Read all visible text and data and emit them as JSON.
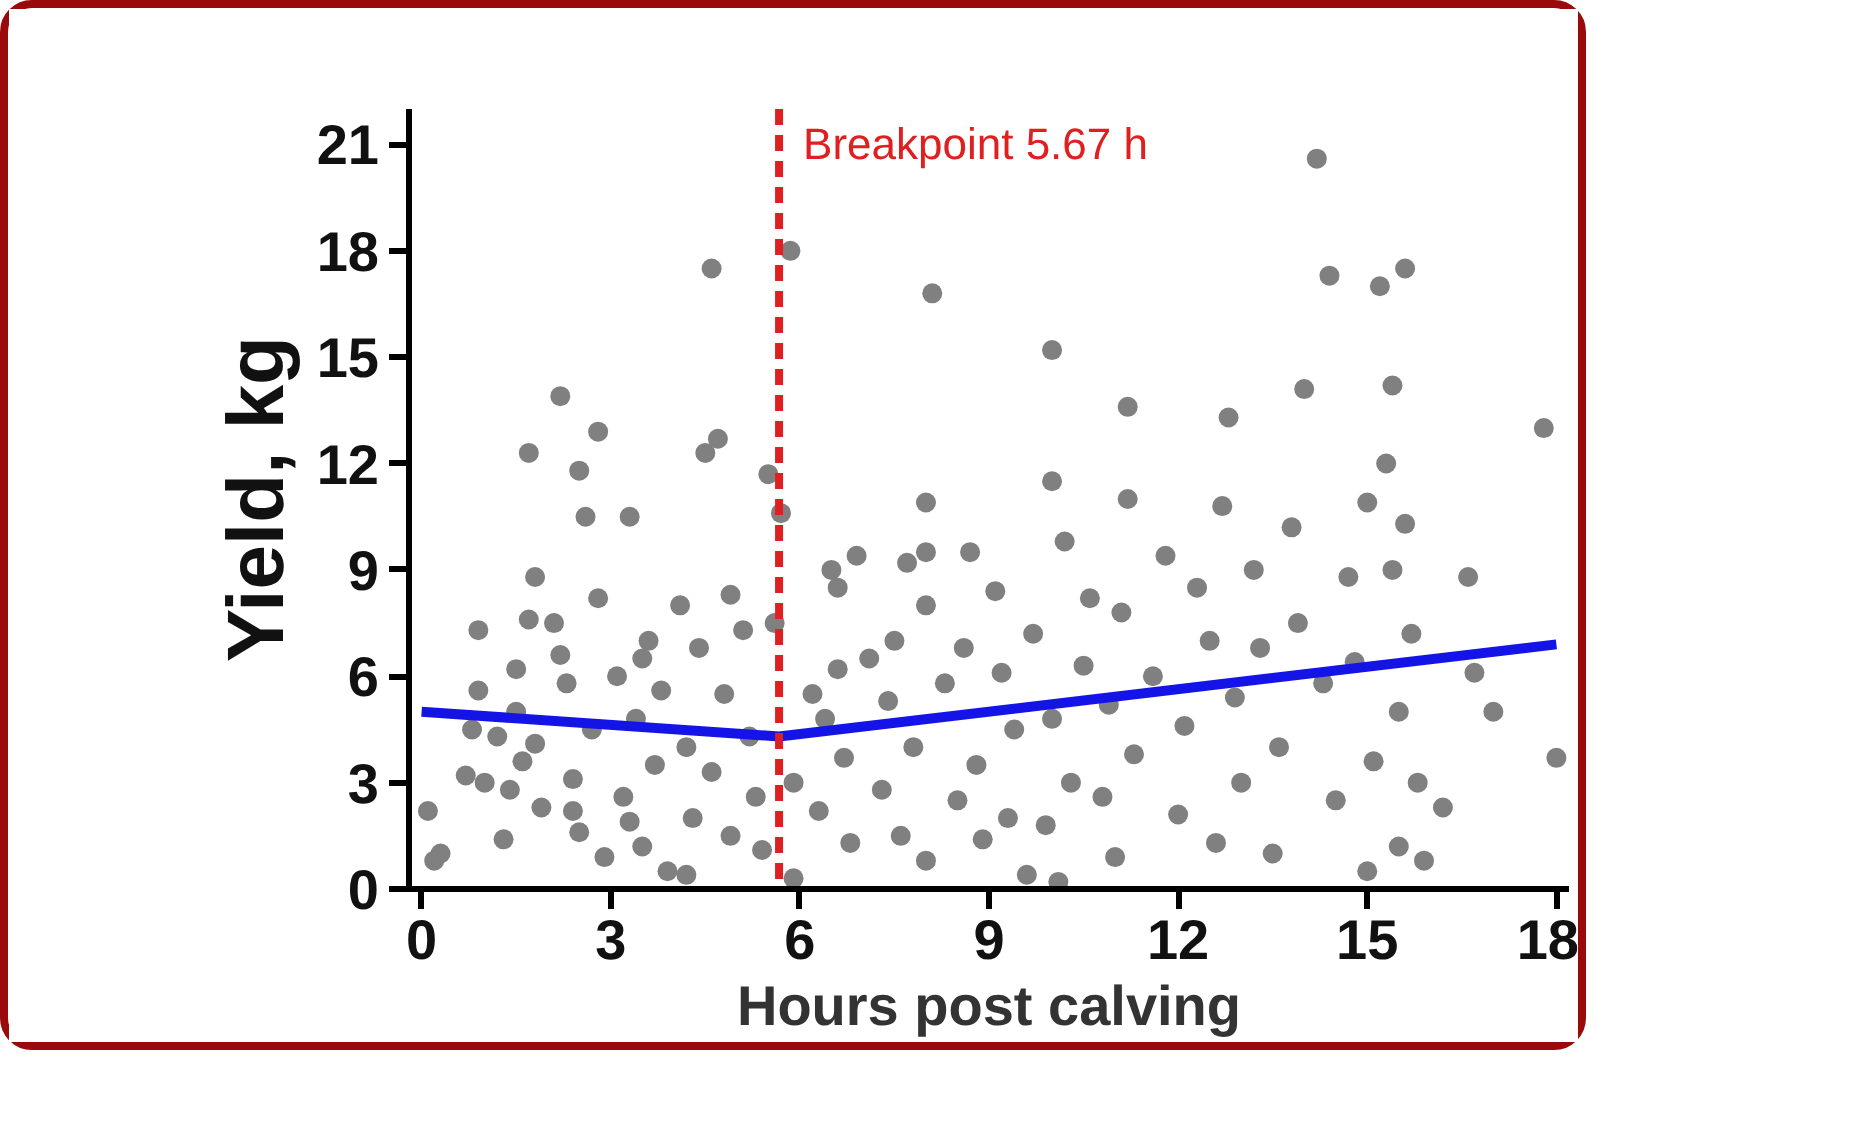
{
  "chart_data": {
    "type": "scatter",
    "xlabel": "Hours post calving",
    "ylabel": "Yield, kg",
    "xlim": [
      -0.2,
      18.2
    ],
    "ylim": [
      0,
      22
    ],
    "xticks": [
      0,
      3,
      6,
      9,
      12,
      15,
      18
    ],
    "yticks": [
      0,
      3,
      6,
      9,
      12,
      15,
      18,
      21
    ],
    "series": [
      {
        "color": "#808080",
        "marker": "circle",
        "x": [
          0.1,
          0.2,
          0.3,
          0.7,
          0.9,
          0.9,
          0.8,
          1.0,
          1.2,
          1.3,
          1.4,
          1.5,
          1.5,
          1.7,
          1.8,
          1.9,
          1.6,
          1.8,
          1.7,
          2.1,
          2.2,
          2.3,
          2.4,
          2.5,
          2.6,
          2.5,
          2.7,
          2.8,
          2.9,
          2.8,
          2.4,
          2.2,
          3.1,
          3.2,
          3.3,
          3.4,
          3.5,
          3.6,
          3.7,
          3.8,
          3.9,
          3.5,
          3.3,
          4.1,
          4.2,
          4.3,
          4.4,
          4.5,
          4.6,
          4.7,
          4.6,
          4.8,
          4.9,
          4.9,
          4.2,
          5.1,
          5.2,
          5.3,
          5.4,
          5.5,
          5.6,
          5.7,
          5.85,
          5.9,
          5.9,
          6.2,
          6.3,
          6.5,
          6.6,
          6.7,
          6.8,
          6.9,
          6.6,
          6.4,
          7.1,
          7.3,
          7.4,
          7.5,
          7.6,
          7.8,
          7.7,
          8.0,
          8.0,
          8.0,
          8.1,
          8.0,
          8.3,
          8.5,
          8.6,
          8.8,
          8.9,
          8.7,
          9.1,
          9.2,
          9.3,
          9.4,
          9.6,
          9.7,
          9.9,
          10.0,
          10.0,
          10.0,
          10.1,
          10.2,
          10.3,
          10.5,
          10.6,
          10.8,
          10.9,
          11.1,
          11.2,
          11.2,
          11.3,
          11.0,
          11.6,
          11.8,
          12.0,
          12.1,
          12.3,
          12.5,
          12.6,
          12.8,
          12.9,
          12.7,
          13.0,
          13.2,
          13.3,
          13.5,
          13.6,
          13.8,
          14.0,
          13.9,
          14.2,
          14.4,
          14.3,
          14.5,
          14.7,
          14.8,
          15.0,
          15.0,
          15.1,
          15.2,
          15.3,
          15.4,
          15.4,
          15.5,
          15.5,
          15.6,
          15.7,
          15.8,
          15.9,
          15.6,
          16.2,
          16.6,
          16.7,
          17.0,
          17.8,
          18.0
        ],
        "values": [
          2.2,
          0.8,
          1.0,
          3.2,
          7.3,
          5.6,
          4.5,
          3.0,
          4.3,
          1.4,
          2.8,
          6.2,
          5.0,
          7.6,
          4.1,
          2.3,
          3.6,
          8.8,
          12.3,
          7.5,
          13.9,
          5.8,
          3.1,
          1.6,
          10.5,
          11.8,
          4.5,
          8.2,
          0.9,
          12.9,
          2.2,
          6.6,
          6.0,
          2.6,
          10.5,
          4.8,
          1.2,
          7.0,
          3.5,
          5.6,
          0.5,
          6.5,
          1.9,
          8.0,
          4.0,
          2.0,
          6.8,
          12.3,
          17.5,
          12.7,
          3.3,
          5.5,
          1.5,
          8.3,
          0.4,
          7.3,
          4.3,
          2.6,
          1.1,
          11.7,
          7.5,
          10.6,
          18.0,
          3.0,
          0.3,
          5.5,
          2.2,
          9.0,
          6.2,
          3.7,
          1.3,
          9.4,
          8.5,
          4.8,
          6.5,
          2.8,
          5.3,
          7.0,
          1.5,
          4.0,
          9.2,
          10.9,
          9.5,
          8.0,
          16.8,
          0.8,
          5.8,
          2.5,
          6.8,
          3.5,
          1.4,
          9.5,
          8.4,
          6.1,
          2.0,
          4.5,
          0.4,
          7.2,
          1.8,
          11.5,
          15.2,
          4.8,
          0.2,
          9.8,
          3.0,
          6.3,
          8.2,
          2.6,
          5.2,
          7.8,
          13.6,
          11.0,
          3.8,
          0.9,
          6.0,
          9.4,
          2.1,
          4.6,
          8.5,
          7.0,
          1.3,
          13.3,
          5.4,
          10.8,
          3.0,
          9.0,
          6.8,
          1.0,
          4.0,
          10.2,
          14.1,
          7.5,
          20.6,
          17.3,
          5.8,
          2.5,
          8.8,
          6.4,
          10.9,
          0.5,
          3.6,
          17.0,
          12.0,
          14.2,
          9.0,
          5.0,
          1.2,
          17.5,
          7.2,
          3.0,
          0.8,
          10.3,
          2.3,
          8.8,
          6.1,
          5.0,
          13.0,
          3.7
        ]
      },
      {
        "type": "line",
        "color": "#1414e6",
        "x": [
          0,
          5.67,
          18
        ],
        "values": [
          5.0,
          4.3,
          6.9
        ]
      }
    ],
    "ref_lines": [
      {
        "axis": "x",
        "value": 5.67,
        "label": "Breakpoint 5.67 h",
        "color": "#e02020",
        "line_style": "dashed"
      }
    ]
  }
}
